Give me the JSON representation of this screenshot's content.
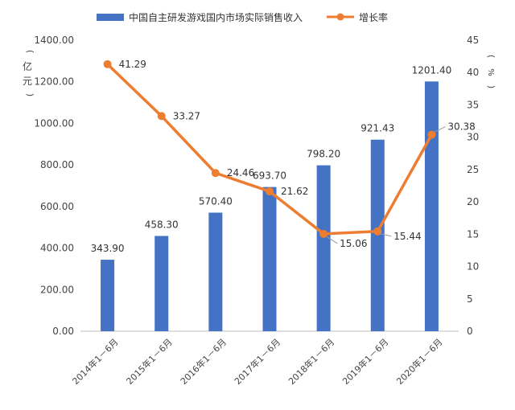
{
  "chart_data": {
    "type": "bar+line",
    "categories": [
      "2014年1－6月",
      "2015年1－6月",
      "2016年1－6月",
      "2017年1－6月",
      "2018年1－6月",
      "2019年1－6月",
      "2020年1－6月"
    ],
    "series": [
      {
        "name": "中国自主研发游戏国内市场实际销售收入",
        "type": "bar",
        "axis": "left",
        "color": "#4472C4",
        "values": [
          343.9,
          458.3,
          570.4,
          693.7,
          798.2,
          921.43,
          1201.4
        ],
        "labels": [
          "343.90",
          "458.30",
          "570.40",
          "693.70",
          "798.20",
          "921.43",
          "1201.40"
        ]
      },
      {
        "name": "增长率",
        "type": "line",
        "axis": "right",
        "color": "#ED7D31",
        "values": [
          41.29,
          33.27,
          24.46,
          21.62,
          15.06,
          15.44,
          30.38
        ],
        "labels": [
          "41.29",
          "33.27",
          "24.46",
          "21.62",
          "15.06",
          "15.44",
          "30.38"
        ]
      }
    ],
    "y_left": {
      "label": "亿元",
      "range": [
        0,
        1400
      ],
      "ticks": [
        "0.00",
        "200.00",
        "400.00",
        "600.00",
        "800.00",
        "1000.00",
        "1200.00",
        "1400.00"
      ]
    },
    "y_right": {
      "label": "%",
      "range": [
        0,
        45
      ],
      "ticks": [
        "0",
        "5",
        "10",
        "15",
        "20",
        "25",
        "30",
        "35",
        "40",
        "45"
      ]
    },
    "legend_position": "top",
    "grid": false
  }
}
